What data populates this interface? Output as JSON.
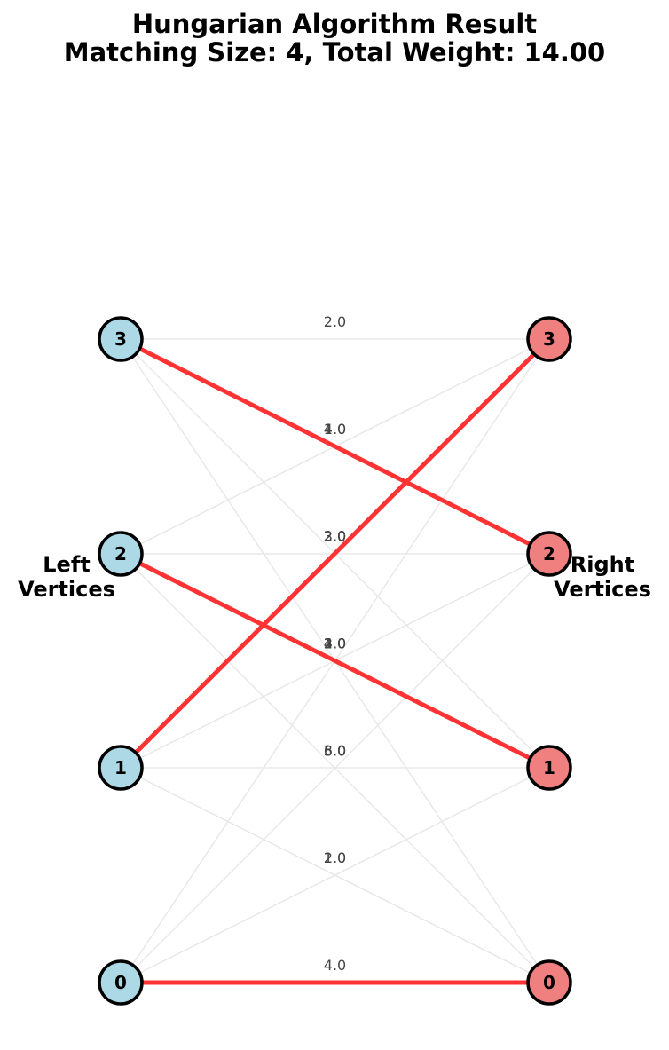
{
  "title": {
    "line1": "Hungarian Algorithm Result",
    "line2": "Matching Size: 4, Total Weight: 14.00"
  },
  "labels": {
    "left_line1": "Left",
    "left_line2": "Vertices",
    "right_line1": "Right",
    "right_line2": "Vertices"
  },
  "colors": {
    "left_node_fill": "#add8e6",
    "right_node_fill": "#f08080",
    "node_stroke": "#000000",
    "matched_edge": "#ff3333",
    "unmatched_edge": "#e8e8e8"
  },
  "graph": {
    "left_vertices": [
      "0",
      "1",
      "2",
      "3"
    ],
    "right_vertices": [
      "0",
      "1",
      "2",
      "3"
    ],
    "edges": [
      {
        "from": "0",
        "to": "0",
        "weight": "4.0",
        "matched": true
      },
      {
        "from": "0",
        "to": "1",
        "weight": "1.0",
        "matched": false
      },
      {
        "from": "0",
        "to": "2",
        "weight": "5.0",
        "matched": false
      },
      {
        "from": "0",
        "to": "3",
        "weight": "3.0",
        "matched": false
      },
      {
        "from": "1",
        "to": "0",
        "weight": "2.0",
        "matched": false
      },
      {
        "from": "1",
        "to": "1",
        "weight": "3.0",
        "matched": false
      },
      {
        "from": "1",
        "to": "2",
        "weight": "2.0",
        "matched": false
      },
      {
        "from": "1",
        "to": "3",
        "weight": "2.0",
        "matched": true
      },
      {
        "from": "2",
        "to": "0",
        "weight": "6.0",
        "matched": false
      },
      {
        "from": "2",
        "to": "1",
        "weight": "4.0",
        "matched": true
      },
      {
        "from": "2",
        "to": "2",
        "weight": "3.0",
        "matched": false
      },
      {
        "from": "2",
        "to": "3",
        "weight": "1.0",
        "matched": false
      },
      {
        "from": "3",
        "to": "0",
        "weight": "1.0",
        "matched": false
      },
      {
        "from": "3",
        "to": "1",
        "weight": "2.0",
        "matched": false
      },
      {
        "from": "3",
        "to": "2",
        "weight": "4.0",
        "matched": true
      },
      {
        "from": "3",
        "to": "3",
        "weight": "2.0",
        "matched": false
      }
    ]
  }
}
